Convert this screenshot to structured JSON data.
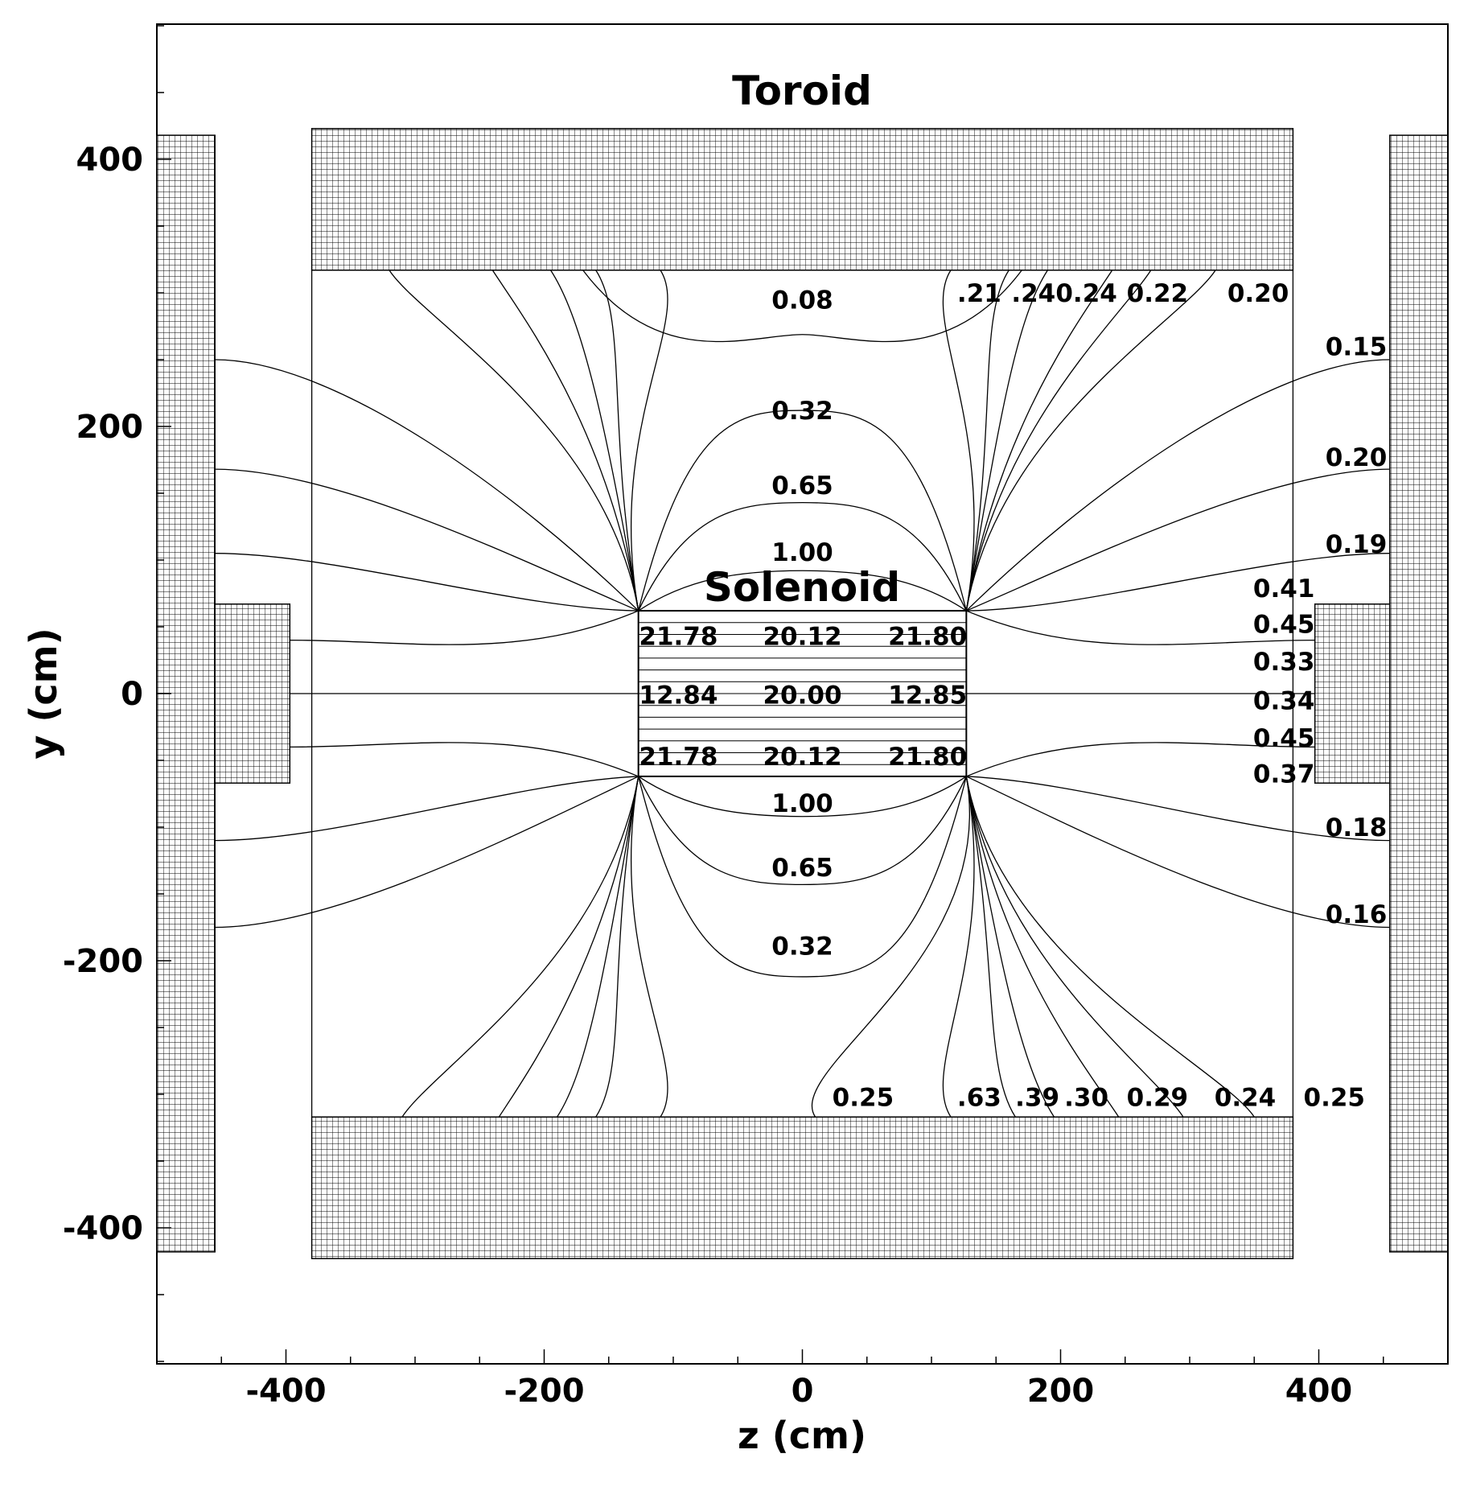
{
  "axes": {
    "x": {
      "label": "z (cm)",
      "range": [
        -500,
        500
      ],
      "ticks": [
        "-400",
        "-200",
        "0",
        "200",
        "400"
      ],
      "tick_values": [
        -400,
        -200,
        0,
        200,
        400
      ]
    },
    "y": {
      "label": "y (cm)",
      "range": [
        -500,
        520
      ],
      "ticks": [
        "400",
        "200",
        "0",
        "-200",
        "-400"
      ],
      "tick_values": [
        400,
        200,
        0,
        -200,
        -400
      ]
    }
  },
  "titles": {
    "toroid": "Toroid",
    "solenoid": "Solenoid"
  },
  "regions": {
    "toroid_top": {
      "z": [
        -380,
        380
      ],
      "y": [
        317,
        423
      ]
    },
    "toroid_bottom": {
      "z": [
        -380,
        380
      ],
      "y": [
        -423,
        -317
      ]
    },
    "endcap_left": {
      "z": [
        -500,
        -455
      ],
      "y": [
        -418,
        418
      ]
    },
    "endcap_right": {
      "z": [
        455,
        500
      ],
      "y": [
        -418,
        418
      ]
    },
    "plug_left": {
      "z": [
        -455,
        -397
      ],
      "y": [
        -67,
        67
      ]
    },
    "plug_right": {
      "z": [
        397,
        455
      ],
      "y": [
        -67,
        67
      ]
    },
    "solenoid": {
      "z": [
        -127,
        127
      ],
      "y": [
        -62,
        62
      ]
    }
  },
  "contour_labels": [
    {
      "text": "0.08",
      "z": 0,
      "y": 295
    },
    {
      "text": "0.32",
      "z": 0,
      "y": 212
    },
    {
      "text": "0.65",
      "z": 0,
      "y": 156
    },
    {
      "text": "1.00",
      "z": 0,
      "y": 106
    },
    {
      "text": "21.78",
      "z": -96,
      "y": 43
    },
    {
      "text": "20.12",
      "z": 0,
      "y": 43
    },
    {
      "text": "21.80",
      "z": 97,
      "y": 43
    },
    {
      "text": "12.84",
      "z": -96,
      "y": -1
    },
    {
      "text": "20.00",
      "z": 0,
      "y": -1
    },
    {
      "text": "12.85",
      "z": 97,
      "y": -1
    },
    {
      "text": "21.78",
      "z": -96,
      "y": -47
    },
    {
      "text": "20.12",
      "z": 0,
      "y": -47
    },
    {
      "text": "21.80",
      "z": 97,
      "y": -47
    },
    {
      "text": "1.00",
      "z": 0,
      "y": -82
    },
    {
      "text": "0.65",
      "z": 0,
      "y": -130
    },
    {
      "text": "0.32",
      "z": 0,
      "y": -189
    },
    {
      "text": ".21",
      "z": 137,
      "y": 300
    },
    {
      "text": ".24",
      "z": 179,
      "y": 300
    },
    {
      "text": "0.24",
      "z": 220,
      "y": 300
    },
    {
      "text": "0.22",
      "z": 275,
      "y": 300
    },
    {
      "text": "0.20",
      "z": 353,
      "y": 300
    },
    {
      "text": "0.15",
      "z": 429,
      "y": 260
    },
    {
      "text": "0.20",
      "z": 429,
      "y": 177
    },
    {
      "text": "0.19",
      "z": 429,
      "y": 112
    },
    {
      "text": "0.41",
      "z": 373,
      "y": 79
    },
    {
      "text": "0.45",
      "z": 373,
      "y": 52
    },
    {
      "text": "0.33",
      "z": 373,
      "y": 24
    },
    {
      "text": "0.34",
      "z": 373,
      "y": -5
    },
    {
      "text": "0.45",
      "z": 373,
      "y": -33
    },
    {
      "text": "0.37",
      "z": 373,
      "y": -60
    },
    {
      "text": "0.18",
      "z": 429,
      "y": -100
    },
    {
      "text": "0.16",
      "z": 429,
      "y": -165
    },
    {
      "text": "0.25",
      "z": 47,
      "y": -302
    },
    {
      "text": ".63",
      "z": 137,
      "y": -302
    },
    {
      "text": ".39",
      "z": 182,
      "y": -302
    },
    {
      "text": ".30",
      "z": 220,
      "y": -302
    },
    {
      "text": "0.29",
      "z": 275,
      "y": -302
    },
    {
      "text": "0.24",
      "z": 343,
      "y": -302
    },
    {
      "text": "0.25",
      "z": 412,
      "y": -302
    }
  ],
  "field_lines": {
    "top_ends_z": [
      -320,
      -240,
      -195,
      -160,
      -110
    ],
    "right_ends_z": [
      115,
      160,
      190,
      240,
      270,
      320
    ],
    "bottom_ends_z": [
      -310,
      -235,
      -190,
      -160,
      -110,
      10,
      115,
      165,
      195,
      245,
      295,
      350
    ],
    "side_left_y": [
      250,
      168,
      105,
      40,
      0,
      -40,
      -110,
      -175
    ],
    "side_right_y": [
      250,
      168,
      105,
      40,
      0,
      -40,
      -110,
      -175
    ]
  }
}
